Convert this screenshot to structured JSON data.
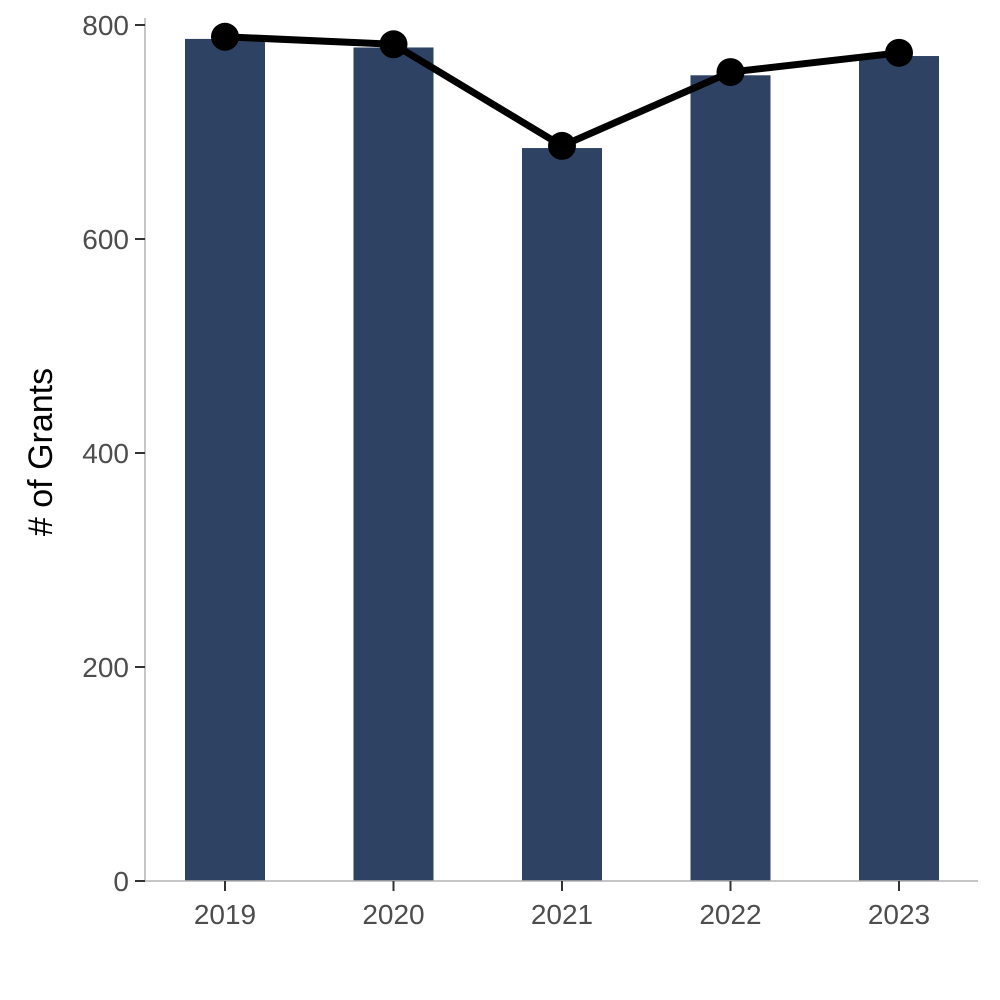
{
  "chart_data": {
    "type": "bar",
    "categories": [
      "2019",
      "2020",
      "2021",
      "2022",
      "2023"
    ],
    "series": [
      {
        "kind": "bar",
        "values": [
          787,
          779,
          685,
          753,
          771
        ]
      },
      {
        "kind": "line",
        "values": [
          789,
          782,
          687,
          756,
          774
        ]
      }
    ],
    "ylabel": "# of Grants",
    "xlabel": "",
    "ylim": [
      0,
      800
    ],
    "yticks": [
      0,
      200,
      400,
      600,
      800
    ],
    "grid": false,
    "bar_color": "#2e4263",
    "line_color": "#000000"
  }
}
